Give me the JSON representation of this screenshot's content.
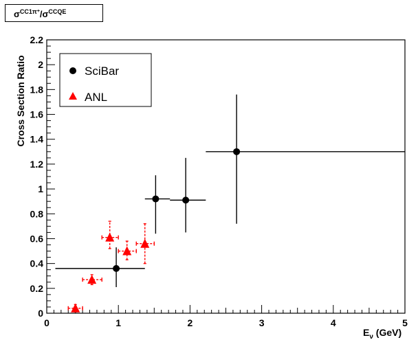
{
  "chart_data": {
    "type": "scatter",
    "title": "σCC1π+/σCCQE",
    "title_parts": {
      "sigma1": "σ",
      "sup1": "CC1π",
      "sup1b": "+",
      "slash": "/σ",
      "sup2": "CCQE"
    },
    "xlabel": "E",
    "xlabel_sub": "ν",
    "xlabel_unit": " (GeV)",
    "ylabel": "Cross Section Ratio",
    "xlim": [
      0,
      5
    ],
    "ylim": [
      0,
      2.2
    ],
    "x_ticks": [
      "0",
      "1",
      "2",
      "3",
      "4",
      "5"
    ],
    "y_ticks": [
      "0",
      "0.2",
      "0.4",
      "0.6",
      "0.8",
      "1",
      "1.2",
      "1.4",
      "1.6",
      "1.8",
      "2",
      "2.2"
    ],
    "legend_position": "top-left",
    "grid": false,
    "series": [
      {
        "name": "SciBar",
        "marker": "circle",
        "color": "#000000",
        "errorbar_style": "solid",
        "points": [
          {
            "x": 0.97,
            "y": 0.36,
            "xlo": 0.12,
            "xhi": 1.37,
            "ylo": 0.21,
            "yhi": 0.53
          },
          {
            "x": 1.52,
            "y": 0.92,
            "xlo": 1.37,
            "xhi": 1.72,
            "ylo": 0.64,
            "yhi": 1.11
          },
          {
            "x": 1.94,
            "y": 0.91,
            "xlo": 1.72,
            "xhi": 2.22,
            "ylo": 0.65,
            "yhi": 1.25
          },
          {
            "x": 2.65,
            "y": 1.3,
            "xlo": 2.22,
            "xhi": 5.0,
            "ylo": 0.72,
            "yhi": 1.76
          }
        ]
      },
      {
        "name": "ANL",
        "marker": "triangle",
        "color": "#ff0000",
        "errorbar_style": "dashed",
        "points": [
          {
            "x": 0.4,
            "y": 0.04,
            "xlo": 0.3,
            "xhi": 0.5,
            "ylo": 0.01,
            "yhi": 0.07
          },
          {
            "x": 0.63,
            "y": 0.27,
            "xlo": 0.5,
            "xhi": 0.77,
            "ylo": 0.23,
            "yhi": 0.31
          },
          {
            "x": 0.88,
            "y": 0.61,
            "xlo": 0.77,
            "xhi": 1.0,
            "ylo": 0.52,
            "yhi": 0.74
          },
          {
            "x": 1.12,
            "y": 0.5,
            "xlo": 1.0,
            "xhi": 1.25,
            "ylo": 0.43,
            "yhi": 0.58
          },
          {
            "x": 1.37,
            "y": 0.56,
            "xlo": 1.25,
            "xhi": 1.5,
            "ylo": 0.4,
            "yhi": 0.72
          }
        ]
      }
    ]
  }
}
